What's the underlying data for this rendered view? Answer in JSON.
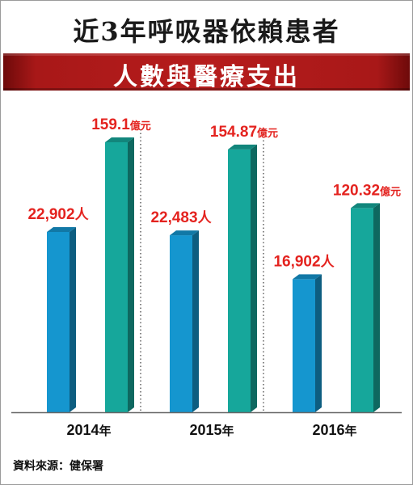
{
  "title": "近3年呼吸器依賴患者",
  "subtitle": "人數與醫療支出",
  "source": "資料來源：健保署",
  "chart_data": {
    "type": "bar",
    "categories": [
      "2014年",
      "2015年",
      "2016年"
    ],
    "series": [
      {
        "values": [
          22902,
          22483,
          16902
        ],
        "labels": [
          "22,902人",
          "22,483人",
          "16,902人"
        ],
        "color": "#1596cf"
      },
      {
        "values": [
          159.1,
          154.87,
          120.32
        ],
        "labels": [
          "159.1億元",
          "154.87億元",
          "120.32億元"
        ],
        "color": "#16a79b"
      }
    ],
    "grid": false,
    "legend": "none"
  }
}
